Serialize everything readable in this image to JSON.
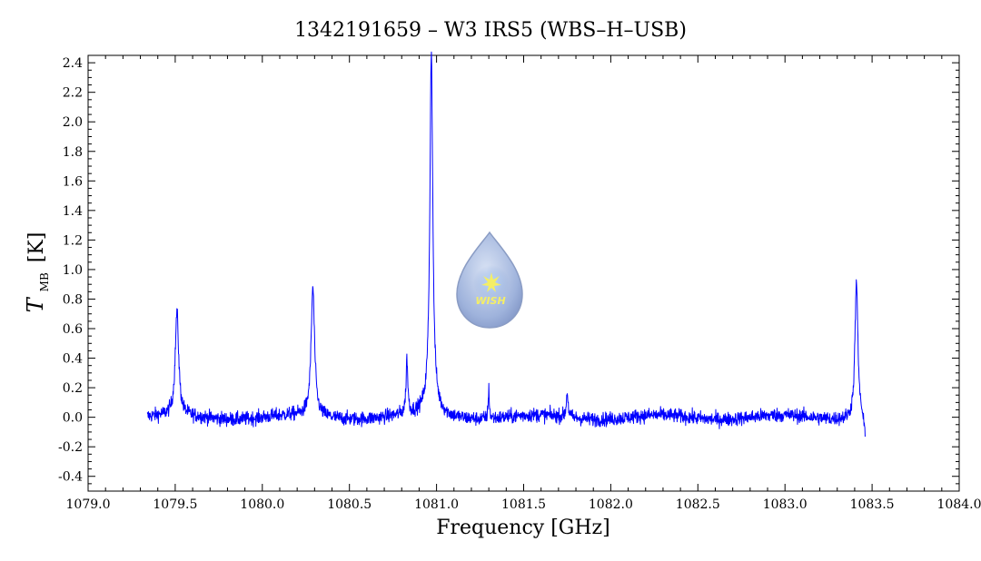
{
  "chart_data": {
    "type": "line",
    "title": "1342191659 – W3 IRS5 (WBS–H–USB)",
    "xlabel": "Frequency [GHz]",
    "ylabel_main": "T",
    "ylabel_sub": "MB",
    "ylabel_unit": "[K]",
    "xlim": [
      1079.0,
      1084.0
    ],
    "ylim": [
      -0.5,
      2.45
    ],
    "x_ticks": [
      1079.0,
      1079.5,
      1080.0,
      1080.5,
      1081.0,
      1081.5,
      1082.0,
      1082.5,
      1083.0,
      1083.5,
      1084.0
    ],
    "x_tick_labels": [
      "1079.0",
      "1079.5",
      "1080.0",
      "1080.5",
      "1081.0",
      "1081.5",
      "1082.0",
      "1082.5",
      "1083.0",
      "1083.5",
      "1084.0"
    ],
    "y_ticks": [
      -0.4,
      -0.2,
      0.0,
      0.2,
      0.4,
      0.6,
      0.8,
      1.0,
      1.2,
      1.4,
      1.6,
      1.8,
      2.0,
      2.2,
      2.4
    ],
    "y_tick_labels": [
      "-0.4",
      "-0.2",
      "0.0",
      "0.2",
      "0.4",
      "0.6",
      "0.8",
      "1.0",
      "1.2",
      "1.4",
      "1.6",
      "1.8",
      "2.0",
      "2.2",
      "2.4"
    ],
    "x_range_data": [
      1079.34,
      1083.46
    ],
    "line_color": "#0000ff",
    "grid": false,
    "series": [
      {
        "peaks": [
          {
            "x": 1079.51,
            "y": 0.7
          },
          {
            "x": 1080.29,
            "y": 0.87
          },
          {
            "x": 1080.83,
            "y": 0.37
          },
          {
            "x": 1080.97,
            "y": 2.41
          },
          {
            "x": 1081.3,
            "y": 0.2
          },
          {
            "x": 1081.75,
            "y": 0.17
          },
          {
            "x": 1083.41,
            "y": 0.93
          }
        ]
      }
    ],
    "watermark": "WISH"
  }
}
